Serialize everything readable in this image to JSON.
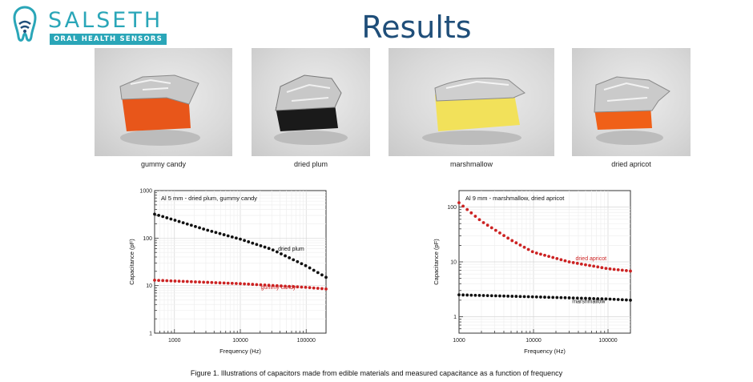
{
  "header": {
    "logo_name": "SALSETH",
    "logo_tagline": "ORAL HEALTH SENSORS",
    "title": "Results"
  },
  "photos": [
    {
      "caption": "gummy candy",
      "color": "#e8561a"
    },
    {
      "caption": "dried plum",
      "color": "#1a1a1a"
    },
    {
      "caption": "marshmallow",
      "color": "#f2e15a"
    },
    {
      "caption": "dried apricot",
      "color": "#f06018"
    }
  ],
  "figure_caption": "Figure 1. Illustrations of capacitors made from edible materials and measured capacitance as a function of frequency",
  "chart_data": [
    {
      "type": "scatter",
      "title": "Al 5 mm - dried plum, gummy candy",
      "xlabel": "Frequency (Hz)",
      "ylabel": "Capacitance (pF)",
      "xscale": "log",
      "yscale": "log",
      "xlim": [
        500,
        200000
      ],
      "ylim": [
        1,
        1000
      ],
      "xticks": [
        {
          "value": 1000,
          "label": "1000"
        },
        {
          "value": 10000,
          "label": "10000"
        },
        {
          "value": 100000,
          "label": "100000"
        }
      ],
      "yticks": [
        {
          "value": 1,
          "label": "1"
        },
        {
          "value": 10,
          "label": "10"
        },
        {
          "value": 100,
          "label": "100"
        },
        {
          "value": 1000,
          "label": "1000"
        }
      ],
      "series": [
        {
          "name": "dried plum",
          "color": "#111111",
          "x": [
            500,
            1000,
            3000,
            10000,
            30000,
            100000,
            200000
          ],
          "y": [
            320,
            240,
            150,
            95,
            58,
            26,
            15
          ]
        },
        {
          "name": "gummy candy",
          "color": "#cc2222",
          "x": [
            500,
            1000,
            10000,
            100000,
            200000
          ],
          "y": [
            13,
            12.5,
            11,
            9.2,
            8.5
          ]
        }
      ]
    },
    {
      "type": "scatter",
      "title": "Al 9 mm - marshmallow, dried apricot",
      "xlabel": "Frequency (Hz)",
      "ylabel": "Capacitance (pF)",
      "xscale": "log",
      "yscale": "log",
      "xlim": [
        1000,
        200000
      ],
      "ylim": [
        0.5,
        200
      ],
      "xticks": [
        {
          "value": 1000,
          "label": "1000"
        },
        {
          "value": 10000,
          "label": "10000"
        },
        {
          "value": 100000,
          "label": "100000"
        }
      ],
      "yticks": [
        {
          "value": 1,
          "label": "1"
        },
        {
          "value": 10,
          "label": "10"
        },
        {
          "value": 100,
          "label": "100"
        }
      ],
      "series": [
        {
          "name": "dried apricot",
          "color": "#cc2222",
          "x": [
            1000,
            2000,
            5000,
            10000,
            30000,
            100000,
            200000
          ],
          "y": [
            120,
            55,
            25,
            15,
            10,
            7.5,
            6.8
          ]
        },
        {
          "name": "marshmallow",
          "color": "#111111",
          "x": [
            1000,
            10000,
            100000,
            200000
          ],
          "y": [
            2.5,
            2.3,
            2.1,
            2.0
          ]
        }
      ]
    }
  ]
}
